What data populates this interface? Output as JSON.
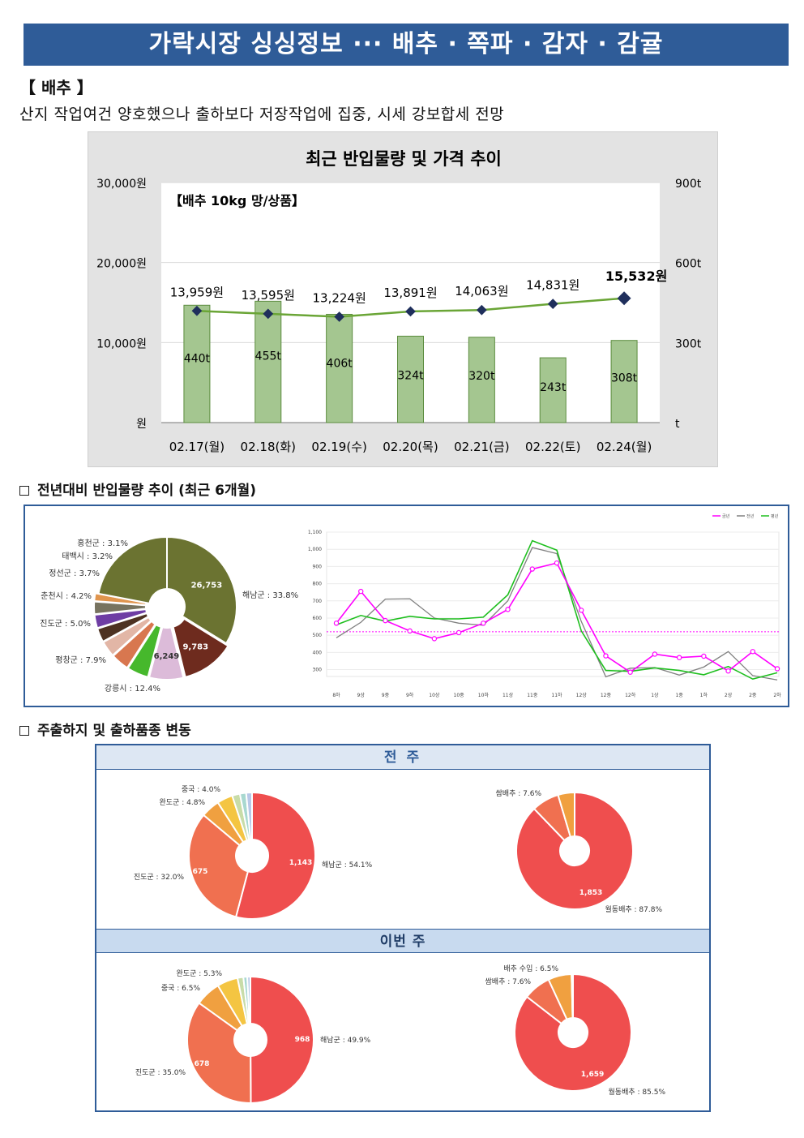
{
  "banner": {
    "title": "가락시장 싱싱정보 ··· 배추 · 쪽파 · 감자 · 감귤"
  },
  "section": {
    "heading": "【 배추 】",
    "summary": "산지 작업여건 양호했으나 출하보다 저장작업에 집중, 시세 강보합세 전망"
  },
  "colors": {
    "banner": "#2f5c98",
    "bar": "#a4c690",
    "bar_border": "#5b8c3e",
    "price_line": "#6aa536",
    "price_marker": "#1f2f5c",
    "this_year": "#ff00ff",
    "last_year": "#808080",
    "avg_year": "#1fbf1f"
  },
  "chart_data": [
    {
      "type": "bar",
      "title": "최근 반입물량 및 가격 추이",
      "product_label": "【배추 10kg 망/상품】",
      "categories": [
        "02.17(월)",
        "02.18(화)",
        "02.19(수)",
        "02.20(목)",
        "02.21(금)",
        "02.22(토)",
        "02.24(월)"
      ],
      "left_axis_ticks": [
        "30,000원",
        "20,000원",
        "10,000원",
        "원"
      ],
      "right_axis_ticks": [
        "900t",
        "600t",
        "300t",
        "t"
      ],
      "left_ylim": [
        0,
        30000
      ],
      "right_ylim": [
        0,
        900
      ],
      "series": [
        {
          "name": "반입량",
          "kind": "bar",
          "axis": "right",
          "values": [
            440,
            455,
            406,
            324,
            320,
            243,
            308
          ],
          "labels": [
            "440t",
            "455t",
            "406t",
            "324t",
            "320t",
            "243t",
            "308t"
          ]
        },
        {
          "name": "가격",
          "kind": "line",
          "axis": "left",
          "values": [
            13959,
            13595,
            13224,
            13891,
            14063,
            14831,
            15532
          ],
          "labels": [
            "13,959원",
            "13,595원",
            "13,224원",
            "13,891원",
            "14,063원",
            "14,831원",
            "15,532원"
          ]
        }
      ]
    },
    {
      "type": "pie",
      "title": "전년대비 반입물량 추이 (최근 6개월)",
      "slices": [
        {
          "name": "해남군",
          "pct": 33.8,
          "label": "해남군 : 33.8%",
          "value_label": "26,753",
          "color": "#6b7331"
        },
        {
          "name": "강릉시",
          "pct": 12.4,
          "label": "강릉시 : 12.4%",
          "value_label": "9,783",
          "color": "#6e2b1e"
        },
        {
          "name": "평창군",
          "pct": 7.9,
          "label": "평창군 : 7.9%",
          "value_label": "6,249",
          "color": "#dcbbd9"
        },
        {
          "name": "진도군",
          "pct": 5.0,
          "label": "진도군 : 5.0%",
          "value_label": "",
          "color": "#46b82c"
        },
        {
          "name": "춘천시",
          "pct": 4.2,
          "label": "춘천시 : 4.2%",
          "value_label": "",
          "color": "#d8774f"
        },
        {
          "name": "정선군",
          "pct": 3.7,
          "label": "정선군 : 3.7%",
          "value_label": "",
          "color": "#e2b6a6"
        },
        {
          "name": "태백시",
          "pct": 3.2,
          "label": "태백시 : 3.2%",
          "value_label": "",
          "color": "#4d3222"
        },
        {
          "name": "홍천군",
          "pct": 3.1,
          "label": "홍천군 : 3.1%",
          "value_label": "",
          "color": "#6e3da4"
        },
        {
          "name": "기타1",
          "pct": 2.9,
          "label": "",
          "value_label": "",
          "color": "#77735f"
        },
        {
          "name": "기타2",
          "pct": 1.8,
          "label": "",
          "value_label": "",
          "color": "#e0954e"
        },
        {
          "name": "기타3",
          "pct": 22.0,
          "label": "",
          "value_label": "",
          "color": "#6b7331"
        }
      ]
    },
    {
      "type": "line",
      "legend": [
        "금년",
        "전년",
        "평년"
      ],
      "x": [
        "8하",
        "9상",
        "9중",
        "9하",
        "10상",
        "10중",
        "10하",
        "11상",
        "11중",
        "11하",
        "12상",
        "12중",
        "12하",
        "1상",
        "1중",
        "1하",
        "2상",
        "2중",
        "2하"
      ],
      "y_ticks": [
        "1,100",
        "1,000",
        "900",
        "800",
        "700",
        "600",
        "500",
        "400",
        "300"
      ],
      "ylim": [
        260,
        1100
      ],
      "reference": 520,
      "series": [
        {
          "name": "금년",
          "values": [
            570,
            755,
            585,
            525,
            480,
            515,
            570,
            650,
            885,
            920,
            645,
            380,
            285,
            390,
            370,
            378,
            292,
            405,
            305
          ]
        },
        {
          "name": "전년",
          "values": [
            485,
            575,
            710,
            712,
            600,
            570,
            558,
            700,
            1010,
            975,
            580,
            258,
            308,
            312,
            268,
            315,
            405,
            265,
            240
          ]
        },
        {
          "name": "평년",
          "values": [
            560,
            615,
            582,
            610,
            595,
            595,
            605,
            735,
            1050,
            995,
            525,
            295,
            290,
            310,
            295,
            270,
            318,
            245,
            282
          ]
        }
      ]
    },
    {
      "type": "pie",
      "title": "주출하지 및 출하품종 변동",
      "period": "전 주",
      "slices": [
        {
          "name": "해남군",
          "pct": 54.1,
          "label": "해남군 : 54.1%",
          "value_label": "1,143",
          "color": "#ef4e4e"
        },
        {
          "name": "진도군",
          "pct": 32.0,
          "label": "진도군 : 32.0%",
          "value_label": "675",
          "color": "#f07050"
        },
        {
          "name": "완도군",
          "pct": 4.8,
          "label": "완도군 : 4.8%",
          "value_label": "",
          "color": "#f0a040"
        },
        {
          "name": "중국",
          "pct": 4.0,
          "label": "중국 : 4.0%",
          "value_label": "",
          "color": "#f4c542"
        },
        {
          "name": "기타1",
          "pct": 2.0,
          "label": "",
          "value_label": "",
          "color": "#c8dca8"
        },
        {
          "name": "기타2",
          "pct": 1.6,
          "label": "",
          "value_label": "",
          "color": "#a8d8d0"
        },
        {
          "name": "기타3",
          "pct": 1.5,
          "label": "",
          "value_label": "",
          "color": "#b8c8e8"
        }
      ]
    },
    {
      "type": "pie",
      "period": "전 주",
      "slices": [
        {
          "name": "월동배추",
          "pct": 87.8,
          "label": "월동배추 : 87.8%",
          "value_label": "1,853",
          "color": "#ef4e4e"
        },
        {
          "name": "쌈배추",
          "pct": 7.6,
          "label": "쌈배추 : 7.6%",
          "value_label": "",
          "color": "#f07050"
        },
        {
          "name": "기타",
          "pct": 4.6,
          "label": "",
          "value_label": "",
          "color": "#f0a040"
        }
      ]
    },
    {
      "type": "pie",
      "period": "이번 주",
      "slices": [
        {
          "name": "해남군",
          "pct": 49.9,
          "label": "해남군 : 49.9%",
          "value_label": "968",
          "color": "#ef4e4e"
        },
        {
          "name": "진도군",
          "pct": 35.0,
          "label": "진도군 : 35.0%",
          "value_label": "678",
          "color": "#f07050"
        },
        {
          "name": "중국",
          "pct": 6.5,
          "label": "중국 : 6.5%",
          "value_label": "",
          "color": "#f0a040"
        },
        {
          "name": "완도군",
          "pct": 5.3,
          "label": "완도군 : 5.3%",
          "value_label": "",
          "color": "#f4c542"
        },
        {
          "name": "기타1",
          "pct": 1.5,
          "label": "",
          "value_label": "",
          "color": "#c8dca8"
        },
        {
          "name": "기타2",
          "pct": 1.0,
          "label": "",
          "value_label": "",
          "color": "#a8d8d0"
        },
        {
          "name": "기타3",
          "pct": 0.8,
          "label": "",
          "value_label": "",
          "color": "#b8c8e8"
        }
      ]
    },
    {
      "type": "pie",
      "period": "이번 주",
      "slices": [
        {
          "name": "월동배추",
          "pct": 85.5,
          "label": "월동배추 : 85.5%",
          "value_label": "1,659",
          "color": "#ef4e4e"
        },
        {
          "name": "쌈배추",
          "pct": 7.6,
          "label": "쌈배추 : 7.6%",
          "value_label": "",
          "color": "#f07050"
        },
        {
          "name": "배추 수입",
          "pct": 6.5,
          "label": "배추 수입 : 6.5%",
          "value_label": "",
          "color": "#f0a040"
        },
        {
          "name": "기타",
          "pct": 0.4,
          "label": "",
          "value_label": "",
          "color": "#f4c542"
        }
      ]
    }
  ],
  "boxes": {
    "trend_title": "전년대비 반입물량 추이 (최근 6개월)",
    "origin_title": "주출하지 및 출하품종 변동",
    "week1": "전 주",
    "week2": "이번 주"
  }
}
